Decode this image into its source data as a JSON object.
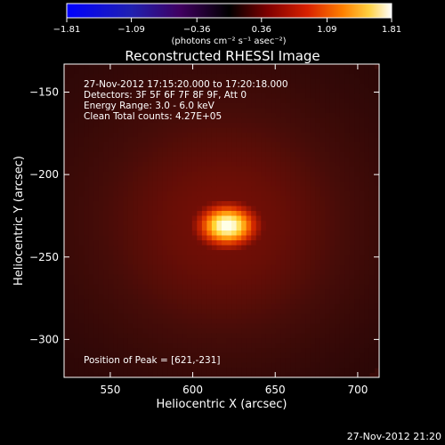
{
  "chart_data": {
    "type": "heatmap",
    "title": "Reconstructed RHESSI Image",
    "xlabel": "Heliocentric X (arcsec)",
    "ylabel": "Heliocentric Y (arcsec)",
    "xlim": [
      522,
      713
    ],
    "ylim": [
      -323,
      -133
    ],
    "xticks": [
      550,
      600,
      650,
      700
    ],
    "xtick_labels": [
      "550",
      "600",
      "650",
      "700"
    ],
    "yticks": [
      -150,
      -200,
      -250,
      -300
    ],
    "ytick_labels": [
      "−150",
      "−200",
      "−250",
      "−300"
    ],
    "colorbar": {
      "range": [
        -1.81,
        1.81
      ],
      "ticks": [
        -1.81,
        -1.09,
        -0.36,
        0.36,
        1.09,
        1.81
      ],
      "tick_labels": [
        "−1.81",
        "−1.09",
        "−0.36",
        "0.36",
        "1.09",
        "1.81"
      ],
      "unit_label": "(photons cm⁻² s⁻¹ asec⁻²)"
    },
    "annotations": {
      "line1": "27-Nov-2012 17:15:20.000 to 17:20:18.000",
      "line2": "Detectors: 3F 5F 6F 7F 8F 9F, Att 0",
      "line3": "Energy Range: 3.0 - 6.0 keV",
      "line4": "Clean    Total counts: 4.27E+05",
      "peak": "Position of Peak = [621,-231]"
    },
    "peak": {
      "x": 621,
      "y": -231,
      "value": 1.81
    },
    "source_extent": {
      "sigma_x": 14,
      "sigma_y": 10
    }
  },
  "footer": {
    "timestamp": "27-Nov-2012 21:20"
  }
}
